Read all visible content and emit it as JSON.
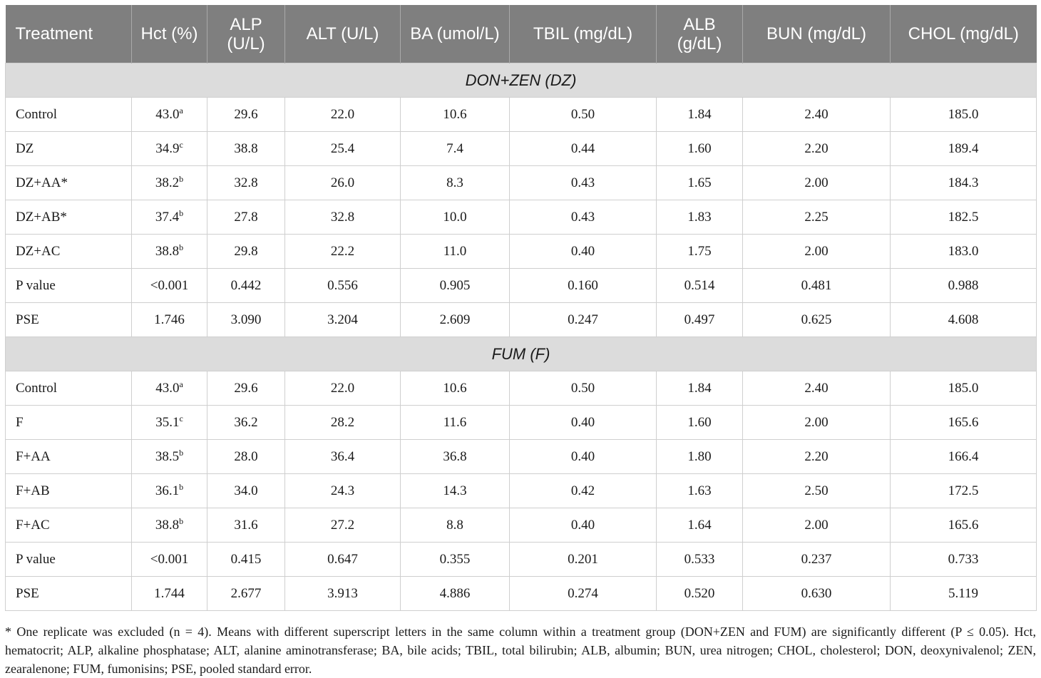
{
  "table": {
    "headers": [
      "Treatment",
      "Hct (%)",
      "ALP (U/L)",
      "ALT (U/L)",
      "BA (umol/L)",
      "TBIL (mg/dL)",
      "ALB (g/dL)",
      "BUN (mg/dL)",
      "CHOL (mg/dL)"
    ],
    "groups": [
      {
        "title": "DON+ZEN (DZ)",
        "rows": [
          {
            "treatment": "Control",
            "hct": "43.0",
            "hct_sup": "a",
            "alp": "29.6",
            "alt": "22.0",
            "ba": "10.6",
            "tbil": "0.50",
            "alb": "1.84",
            "bun": "2.40",
            "chol": "185.0"
          },
          {
            "treatment": "DZ",
            "hct": "34.9",
            "hct_sup": "c",
            "alp": "38.8",
            "alt": "25.4",
            "ba": "7.4",
            "tbil": "0.44",
            "alb": "1.60",
            "bun": "2.20",
            "chol": "189.4"
          },
          {
            "treatment": "DZ+AA*",
            "hct": "38.2",
            "hct_sup": "b",
            "alp": "32.8",
            "alt": "26.0",
            "ba": "8.3",
            "tbil": "0.43",
            "alb": "1.65",
            "bun": "2.00",
            "chol": "184.3"
          },
          {
            "treatment": "DZ+AB*",
            "hct": "37.4",
            "hct_sup": "b",
            "alp": "27.8",
            "alt": "32.8",
            "ba": "10.0",
            "tbil": "0.43",
            "alb": "1.83",
            "bun": "2.25",
            "chol": "182.5"
          },
          {
            "treatment": "DZ+AC",
            "hct": "38.8",
            "hct_sup": "b",
            "alp": "29.8",
            "alt": "22.2",
            "ba": "11.0",
            "tbil": "0.40",
            "alb": "1.75",
            "bun": "2.00",
            "chol": "183.0"
          },
          {
            "treatment": "P value",
            "hct": "<0.001",
            "hct_sup": "",
            "alp": "0.442",
            "alt": "0.556",
            "ba": "0.905",
            "tbil": "0.160",
            "alb": "0.514",
            "bun": "0.481",
            "chol": "0.988"
          },
          {
            "treatment": "PSE",
            "hct": "1.746",
            "hct_sup": "",
            "alp": "3.090",
            "alt": "3.204",
            "ba": "2.609",
            "tbil": "0.247",
            "alb": "0.497",
            "bun": "0.625",
            "chol": "4.608"
          }
        ]
      },
      {
        "title": "FUM (F)",
        "rows": [
          {
            "treatment": "Control",
            "hct": "43.0",
            "hct_sup": "a",
            "alp": "29.6",
            "alt": "22.0",
            "ba": "10.6",
            "tbil": "0.50",
            "alb": "1.84",
            "bun": "2.40",
            "chol": "185.0"
          },
          {
            "treatment": "F",
            "hct": "35.1",
            "hct_sup": "c",
            "alp": "36.2",
            "alt": "28.2",
            "ba": "11.6",
            "tbil": "0.40",
            "alb": "1.60",
            "bun": "2.00",
            "chol": "165.6"
          },
          {
            "treatment": "F+AA",
            "hct": "38.5",
            "hct_sup": "b",
            "alp": "28.0",
            "alt": "36.4",
            "ba": "36.8",
            "tbil": "0.40",
            "alb": "1.80",
            "bun": "2.20",
            "chol": "166.4"
          },
          {
            "treatment": "F+AB",
            "hct": "36.1",
            "hct_sup": "b",
            "alp": "34.0",
            "alt": "24.3",
            "ba": "14.3",
            "tbil": "0.42",
            "alb": "1.63",
            "bun": "2.50",
            "chol": "172.5"
          },
          {
            "treatment": "F+AC",
            "hct": "38.8",
            "hct_sup": "b",
            "alp": "31.6",
            "alt": "27.2",
            "ba": "8.8",
            "tbil": "0.40",
            "alb": "1.64",
            "bun": "2.00",
            "chol": "165.6"
          },
          {
            "treatment": "P value",
            "hct": "<0.001",
            "hct_sup": "",
            "alp": "0.415",
            "alt": "0.647",
            "ba": "0.355",
            "tbil": "0.201",
            "alb": "0.533",
            "bun": "0.237",
            "chol": "0.733"
          },
          {
            "treatment": "PSE",
            "hct": "1.744",
            "hct_sup": "",
            "alp": "2.677",
            "alt": "3.913",
            "ba": "4.886",
            "tbil": "0.274",
            "alb": "0.520",
            "bun": "0.630",
            "chol": "5.119"
          }
        ]
      }
    ]
  },
  "footnote": "* One replicate was excluded (n = 4). Means with different superscript letters in the same column within a treatment group (DON+ZEN and FUM) are significantly different (P ≤ 0.05). Hct, hematocrit; ALP, alkaline phosphatase; ALT, alanine aminotransferase; BA, bile acids; TBIL, total bilirubin; ALB, albumin; BUN, urea nitrogen; CHOL, cholesterol; DON, deoxynivalenol; ZEN, zearalenone; FUM, fumonisins; PSE, pooled standard error."
}
